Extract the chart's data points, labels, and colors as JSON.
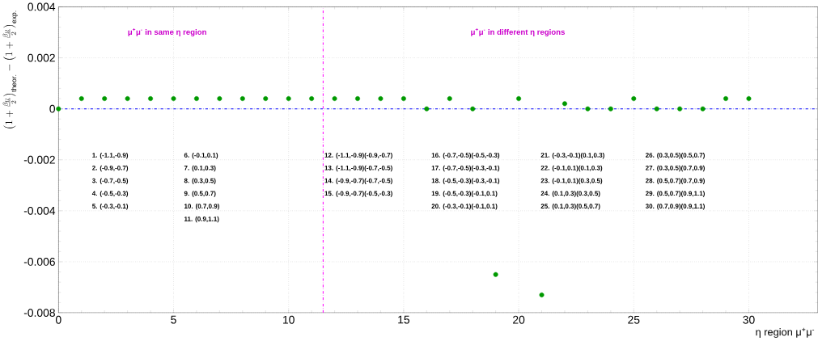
{
  "chart_data": {
    "type": "scatter",
    "xlabel": "η region μ$^{+}$μ$^{-}$",
    "ylabel": "\\left(1+\\frac{\\beta_{ll}}{2}\\right)_{\\mathrm{theor.}} - \\left(1+\\frac{\\beta_{ll}}{2}\\right)_{\\mathrm{exp.}}",
    "x": [
      0,
      1,
      2,
      3,
      4,
      5,
      6,
      7,
      8,
      9,
      10,
      11,
      12,
      13,
      14,
      15,
      16,
      17,
      18,
      19,
      20,
      21,
      22,
      23,
      24,
      25,
      26,
      27,
      28,
      29,
      30
    ],
    "series": [
      {
        "color": "#009900",
        "values": [
          0,
          0.0004,
          0.0004,
          0.0004,
          0.0004,
          0.0004,
          0.0004,
          0.0004,
          0.0004,
          0.0004,
          0.0004,
          0.0004,
          0.0004,
          0.0004,
          0.0004,
          0.0004,
          0,
          0.0004,
          0,
          -0.0065,
          0.0004,
          -0.0073,
          0.0002,
          0,
          0,
          0.0004,
          0,
          0,
          0,
          0.0004,
          0.0004
        ]
      }
    ],
    "marker": "circle",
    "xlim": [
      0,
      33
    ],
    "ylim": [
      -0.008,
      0.004
    ],
    "xticks": [
      0,
      5,
      10,
      15,
      20,
      25,
      30
    ],
    "yticks": [
      -0.008,
      -0.006,
      -0.004,
      -0.002,
      0,
      0.002,
      0.004
    ],
    "grid": true,
    "ref_lines": [
      {
        "axis": "y",
        "value": 0,
        "color": "#0000ff",
        "line_style": "dashdot"
      },
      {
        "axis": "x",
        "value": 11.5,
        "color": "#ff00ff",
        "line_style": "dashdot"
      }
    ],
    "annotations": [
      "μ$^{+}$μ$^{-}$ in same η region",
      "μ$^{+}$μ$^{-}$ in different η regions",
      "1. (-1.1,-0.9)",
      "2. (-0.9,-0.7)",
      "3. (-0.7,-0.5)",
      "4. (-0.5,-0.3)",
      "5. (-0.3,-0.1)",
      "6. (-0.1,0.1)",
      "7. (0.1,0.3)",
      "8. (0.3,0.5)",
      "9. (0.5,0.7)",
      "10. (0.7,0.9)",
      "11. (0.9,1.1)",
      "12. (-1.1,-0.9)(-0.9,-0.7)",
      "13. (-1.1,-0.9)(-0.7,-0.5)",
      "14. (-0.9,-0.7)(-0.7,-0.5)",
      "15. (-0.9,-0.7)(-0.5,-0.3)",
      "16. (-0.7,-0.5)(-0.5,-0.3)",
      "17. (-0.7,-0.5)(-0.3,-0.1)",
      "18. (-0.5,-0.3)(-0.3,-0.1)",
      "19. (-0.5,-0.3)(-0.1,0.1)",
      "20. (-0.3,-0.1)(-0.1,0.1)",
      "21. (-0.3,-0.1)(0.1,0.3)",
      "22. (-0.1,0.1)(0.1,0.3)",
      "23. (-0.1,0.1)(0.3,0.5)",
      "24. (0.1,0.3)(0.3,0.5)",
      "25. (0.1,0.3)(0.5,0.7)",
      "26. (0.3,0.5)(0.5,0.7)",
      "27. (0.3,0.5)(0.7,0.9)",
      "28. (0.5,0.7)(0.7,0.9)",
      "29. (0.5,0.7)(0.9,1.1)",
      "30. (0.7,0.9)(0.9,1.1)"
    ]
  }
}
